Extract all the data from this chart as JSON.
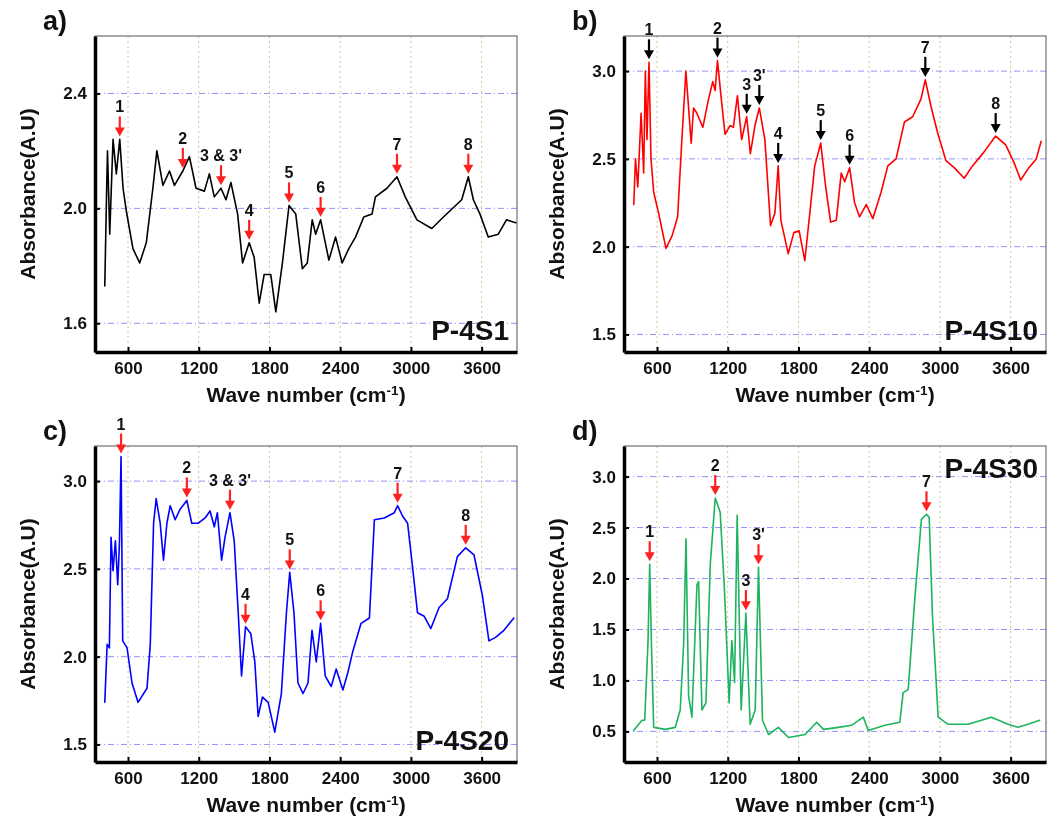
{
  "chart_data": [
    {
      "type": "line",
      "title": "P-4S1",
      "subtitle": "a)",
      "xlabel": "Wave number (cm$^{-1}$)",
      "ylabel": "Absorbance(A.U)",
      "xlim": [
        320,
        3900
      ],
      "xticks": [
        600,
        1200,
        1800,
        2400,
        3000,
        3600
      ],
      "ylim": [
        1.5,
        2.6
      ],
      "yticks": [
        1.6,
        {
          "value": 2,
          "label": "2.0"
        },
        2.4
      ],
      "grid": true,
      "series": [
        {
          "color": "#000000",
          "x": [
            403,
            417,
            426,
            445,
            473,
            501,
            530,
            558,
            586,
            642,
            699,
            755,
            811,
            845,
            896,
            952,
            994,
            1065,
            1121,
            1177,
            1248,
            1290,
            1332,
            1389,
            1431,
            1473,
            1530,
            1572,
            1628,
            1670,
            1713,
            1755,
            1811,
            1854,
            1910,
            1966,
            2023,
            2079,
            2121,
            2163,
            2192,
            2234,
            2304,
            2361,
            2417,
            2473,
            2530,
            2600,
            2670,
            2699,
            2797,
            2882,
            2952,
            3051,
            3177,
            3276,
            3431,
            3487,
            3530,
            3586,
            3656,
            3741,
            3811,
            3890
          ],
          "values": [
            1.73,
            2.03,
            2.2,
            1.91,
            2.24,
            2.12,
            2.24,
            2.07,
            1.99,
            1.86,
            1.81,
            1.88,
            2.07,
            2.2,
            2.08,
            2.13,
            2.08,
            2.13,
            2.18,
            2.07,
            2.06,
            2.12,
            2.04,
            2.07,
            2.03,
            2.09,
            1.98,
            1.81,
            1.88,
            1.83,
            1.67,
            1.77,
            1.77,
            1.64,
            1.81,
            2.01,
            1.98,
            1.79,
            1.81,
            1.96,
            1.91,
            1.96,
            1.82,
            1.9,
            1.81,
            1.86,
            1.9,
            1.97,
            1.98,
            2.04,
            2.07,
            2.11,
            2.04,
            1.96,
            1.93,
            1.97,
            2.03,
            2.11,
            2.03,
            1.98,
            1.9,
            1.91,
            1.96,
            1.95
          ]
        }
      ],
      "annotations": [
        {
          "text": "1",
          "x": 530,
          "y": 2.24
        },
        {
          "text": "2",
          "x": 1065,
          "y": 2.13
        },
        {
          "text": "3 & 3'",
          "x": 1389,
          "y": 2.07
        },
        {
          "text": "4",
          "x": 1628,
          "y": 1.88
        },
        {
          "text": "5",
          "x": 1966,
          "y": 2.01
        },
        {
          "text": "6",
          "x": 2234,
          "y": 1.96
        },
        {
          "text": "7",
          "x": 2882,
          "y": 2.11
        },
        {
          "text": "8",
          "x": 3487,
          "y": 2.11
        }
      ]
    },
    {
      "type": "line",
      "title": "P-4S10",
      "subtitle": "b)",
      "xlabel": "Wave number (cm$^{-1}$)",
      "ylabel": "Absorbance(A.U)",
      "xlim": [
        320,
        3900
      ],
      "xticks": [
        600,
        1200,
        1800,
        2400,
        3000,
        3600
      ],
      "ylim": [
        1.4,
        3.2
      ],
      "yticks": [
        1.5,
        {
          "value": 2,
          "label": "2.0"
        },
        2.5,
        {
          "value": 3,
          "label": "3.0"
        }
      ],
      "grid": true,
      "series": [
        {
          "color": "#ff0000",
          "x": [
            403,
            417,
            437,
            465,
            487,
            501,
            515,
            532,
            549,
            572,
            614,
            676,
            727,
            775,
            811,
            845,
            890,
            910,
            938,
            989,
            1037,
            1073,
            1093,
            1113,
            1144,
            1177,
            1220,
            1248,
            1282,
            1318,
            1361,
            1392,
            1431,
            1468,
            1515,
            1563,
            1600,
            1628,
            1651,
            1713,
            1761,
            1806,
            1854,
            1896,
            1938,
            1989,
            2031,
            2073,
            2121,
            2163,
            2192,
            2234,
            2276,
            2318,
            2375,
            2431,
            2501,
            2558,
            2628,
            2699,
            2769,
            2839,
            2876,
            2924,
            2980,
            3051,
            3121,
            3206,
            3276,
            3375,
            3473,
            3558,
            3628,
            3685,
            3755,
            3817,
            3859
          ],
          "values": [
            2.24,
            2.5,
            2.34,
            2.76,
            2.42,
            3.0,
            2.61,
            3.05,
            2.5,
            2.31,
            2.19,
            1.99,
            2.06,
            2.17,
            2.61,
            3.0,
            2.59,
            2.79,
            2.76,
            2.68,
            2.84,
            2.94,
            2.89,
            3.06,
            2.85,
            2.64,
            2.69,
            2.68,
            2.86,
            2.61,
            2.74,
            2.53,
            2.69,
            2.79,
            2.61,
            2.12,
            2.19,
            2.46,
            2.15,
            1.96,
            2.08,
            2.09,
            1.92,
            2.19,
            2.46,
            2.59,
            2.34,
            2.14,
            2.15,
            2.42,
            2.37,
            2.45,
            2.25,
            2.17,
            2.24,
            2.16,
            2.31,
            2.46,
            2.5,
            2.71,
            2.74,
            2.84,
            2.95,
            2.8,
            2.65,
            2.49,
            2.45,
            2.39,
            2.46,
            2.54,
            2.63,
            2.58,
            2.48,
            2.38,
            2.45,
            2.5,
            2.6
          ]
        }
      ],
      "annotations": [
        {
          "text": "1",
          "x": 532,
          "y": 3.05
        },
        {
          "text": "2",
          "x": 1113,
          "y": 3.06
        },
        {
          "text": "3",
          "x": 1361,
          "y": 2.74
        },
        {
          "text": "3'",
          "x": 1468,
          "y": 2.79
        },
        {
          "text": "4",
          "x": 1628,
          "y": 2.46
        },
        {
          "text": "5",
          "x": 1989,
          "y": 2.59
        },
        {
          "text": "6",
          "x": 2234,
          "y": 2.45
        },
        {
          "text": "7",
          "x": 2876,
          "y": 2.95
        },
        {
          "text": "8",
          "x": 3473,
          "y": 2.63
        }
      ]
    },
    {
      "type": "line",
      "title": "P-4S20",
      "subtitle": "c)",
      "xlabel": "Wave number (cm$^{-1}$)",
      "ylabel": "Absorbance(A.U)",
      "xlim": [
        320,
        3900
      ],
      "xticks": [
        600,
        1200,
        1800,
        2400,
        3000,
        3600
      ],
      "ylim": [
        1.4,
        3.2
      ],
      "yticks": [
        1.5,
        {
          "value": 2,
          "label": "2.0"
        },
        2.5,
        {
          "value": 3,
          "label": "3.0"
        }
      ],
      "grid": true,
      "series": [
        {
          "color": "#0000ff",
          "x": [
            403,
            423,
            442,
            456,
            473,
            493,
            513,
            527,
            541,
            555,
            592,
            634,
            685,
            761,
            789,
            817,
            839,
            873,
            901,
            930,
            958,
            1000,
            1042,
            1099,
            1141,
            1197,
            1254,
            1296,
            1332,
            1358,
            1394,
            1423,
            1465,
            1501,
            1535,
            1563,
            1597,
            1642,
            1676,
            1704,
            1741,
            1789,
            1845,
            1901,
            1944,
            1972,
            2008,
            2042,
            2085,
            2127,
            2161,
            2197,
            2234,
            2273,
            2324,
            2366,
            2423,
            2465,
            2507,
            2577,
            2648,
            2690,
            2775,
            2859,
            2887,
            2930,
            2972,
            3014,
            3056,
            3113,
            3169,
            3239,
            3310,
            3394,
            3465,
            3535,
            3606,
            3662,
            3718,
            3789,
            3873
          ],
          "values": [
            1.74,
            2.07,
            2.05,
            2.68,
            2.49,
            2.66,
            2.41,
            2.64,
            3.14,
            2.09,
            2.05,
            1.85,
            1.74,
            1.82,
            2.07,
            2.76,
            2.9,
            2.76,
            2.55,
            2.76,
            2.86,
            2.78,
            2.84,
            2.89,
            2.76,
            2.76,
            2.79,
            2.83,
            2.74,
            2.82,
            2.55,
            2.68,
            2.82,
            2.66,
            2.25,
            1.89,
            2.17,
            2.13,
            1.97,
            1.66,
            1.77,
            1.74,
            1.57,
            1.79,
            2.25,
            2.48,
            2.25,
            1.85,
            1.79,
            1.85,
            2.15,
            1.97,
            2.19,
            1.89,
            1.83,
            1.93,
            1.81,
            1.91,
            2.03,
            2.19,
            2.22,
            2.78,
            2.79,
            2.82,
            2.86,
            2.8,
            2.76,
            2.51,
            2.25,
            2.23,
            2.16,
            2.28,
            2.33,
            2.57,
            2.62,
            2.58,
            2.35,
            2.09,
            2.11,
            2.15,
            2.22
          ]
        }
      ],
      "annotations": [
        {
          "text": "1",
          "x": 541,
          "y": 3.14
        },
        {
          "text": "2",
          "x": 1099,
          "y": 2.89
        },
        {
          "text": "3 & 3'",
          "x": 1465,
          "y": 2.82
        },
        {
          "text": "4",
          "x": 1597,
          "y": 2.17
        },
        {
          "text": "5",
          "x": 1972,
          "y": 2.48
        },
        {
          "text": "6",
          "x": 2234,
          "y": 2.19
        },
        {
          "text": "7",
          "x": 2887,
          "y": 2.86
        },
        {
          "text": "8",
          "x": 3465,
          "y": 2.62
        }
      ]
    },
    {
      "type": "line",
      "title": "P-4S30",
      "subtitle": "d)",
      "xlabel": "Wave number (cm$^{-1}$)",
      "ylabel": "Absorbance(A.U)",
      "xlim": [
        320,
        3900
      ],
      "xticks": [
        600,
        1200,
        1800,
        2400,
        3000,
        3600
      ],
      "ylim": [
        0.2,
        3.3
      ],
      "yticks": [
        0.5,
        {
          "value": 1,
          "label": "1.0"
        },
        1.5,
        {
          "value": 2,
          "label": "2.0"
        },
        2.5,
        {
          "value": 3,
          "label": "3.0"
        }
      ],
      "grid": true,
      "series": [
        {
          "color": "#1db35f",
          "x": [
            402,
            473,
            496,
            524,
            538,
            552,
            572,
            671,
            755,
            797,
            826,
            846,
            868,
            896,
            939,
            953,
            981,
            1015,
            1052,
            1094,
            1136,
            1173,
            1212,
            1235,
            1258,
            1280,
            1314,
            1354,
            1390,
            1433,
            1461,
            1495,
            1546,
            1630,
            1715,
            1856,
            1955,
            2012,
            2139,
            2251,
            2350,
            2392,
            2533,
            2660,
            2688,
            2731,
            2787,
            2843,
            2886,
            2909,
            2937,
            2985,
            3070,
            3239,
            3437,
            3578,
            3662,
            3747,
            3846
          ],
          "values": [
            0.51,
            0.61,
            0.61,
            1.39,
            2.14,
            1.39,
            0.54,
            0.52,
            0.54,
            0.71,
            1.36,
            2.39,
            0.85,
            0.64,
            1.94,
            1.97,
            0.71,
            0.78,
            2.14,
            2.79,
            2.65,
            1.87,
            0.78,
            1.39,
            0.98,
            2.62,
            0.71,
            1.66,
            0.57,
            0.71,
            2.11,
            0.61,
            0.47,
            0.54,
            0.44,
            0.47,
            0.59,
            0.52,
            0.54,
            0.56,
            0.64,
            0.51,
            0.56,
            0.59,
            0.88,
            0.91,
            1.8,
            2.58,
            2.63,
            2.6,
            1.63,
            0.64,
            0.57,
            0.57,
            0.64,
            0.57,
            0.54,
            0.57,
            0.61
          ]
        }
      ],
      "annotations": [
        {
          "text": "1",
          "x": 538,
          "y": 2.14
        },
        {
          "text": "2",
          "x": 1094,
          "y": 2.79
        },
        {
          "text": "3",
          "x": 1354,
          "y": 1.66
        },
        {
          "text": "3'",
          "x": 1461,
          "y": 2.11
        },
        {
          "text": "7",
          "x": 2886,
          "y": 2.63
        }
      ]
    }
  ]
}
